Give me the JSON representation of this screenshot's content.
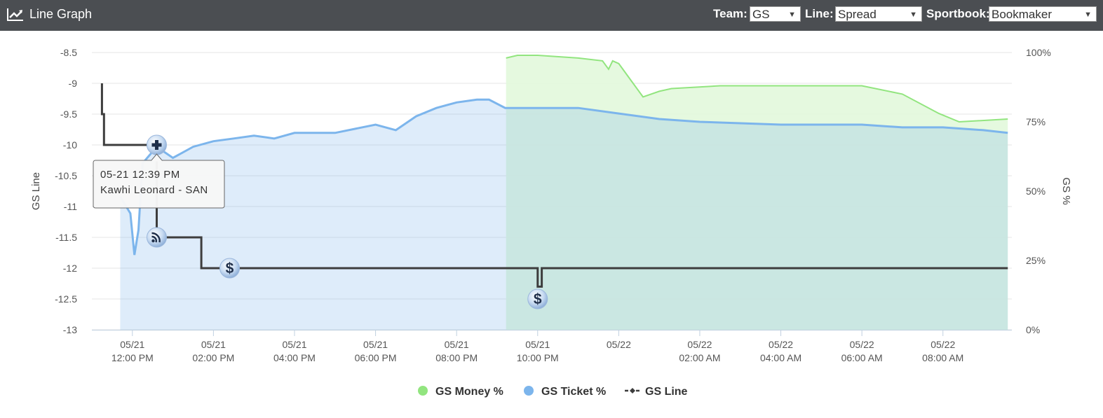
{
  "header": {
    "title": "Line Graph",
    "team_label": "Team:",
    "team_value": "GS",
    "line_label": "Line:",
    "line_value": "Spread",
    "sportsbook_label": "Sportbook:",
    "sportsbook_value": "Bookmaker"
  },
  "colors": {
    "header_bg": "#4b4e52",
    "money": "#92e57f",
    "money_fill": "#e2f8dc",
    "ticket": "#7cb5ec",
    "ticket_fill": "#dde9f7",
    "overlap_fill": "#c9e8e0",
    "line": "#3d3d3d"
  },
  "chart_data": {
    "type": "line",
    "xlabel": "",
    "ylabel": "GS Line",
    "y2label": "GS %",
    "ylim": [
      -13,
      -8.5
    ],
    "y2lim": [
      0,
      100
    ],
    "yticks": [
      "-8.5",
      "-9",
      "-9.5",
      "-10",
      "-10.5",
      "-11",
      "-11.5",
      "-12",
      "-12.5",
      "-13"
    ],
    "y2ticks": [
      "100%",
      "75%",
      "50%",
      "25%",
      "0%"
    ],
    "xticks": [
      {
        "hour": 12,
        "date": "05/21",
        "time": "12:00 PM"
      },
      {
        "hour": 14,
        "date": "05/21",
        "time": "02:00 PM"
      },
      {
        "hour": 16,
        "date": "05/21",
        "time": "04:00 PM"
      },
      {
        "hour": 18,
        "date": "05/21",
        "time": "06:00 PM"
      },
      {
        "hour": 20,
        "date": "05/21",
        "time": "08:00 PM"
      },
      {
        "hour": 22,
        "date": "05/21",
        "time": "10:00 PM"
      },
      {
        "hour": 24,
        "date": "05/22",
        "time": ""
      },
      {
        "hour": 26,
        "date": "05/22",
        "time": "02:00 AM"
      },
      {
        "hour": 28,
        "date": "05/22",
        "time": "04:00 AM"
      },
      {
        "hour": 30,
        "date": "05/22",
        "time": "06:00 AM"
      },
      {
        "hour": 32,
        "date": "05/22",
        "time": "08:00 AM"
      }
    ],
    "xlim": [
      11.0,
      33.7
    ],
    "legend": [
      {
        "name": "GS Money %",
        "marker": "circle",
        "color": "#92e57f"
      },
      {
        "name": "GS Ticket %",
        "marker": "circle",
        "color": "#7cb5ec"
      },
      {
        "name": "GS Line",
        "marker": "line",
        "color": "#3d3d3d"
      }
    ],
    "series": [
      {
        "name": "GS Money %",
        "axis": "right",
        "x": [
          21.22,
          21.5,
          22,
          23,
          23.6,
          23.75,
          23.85,
          24.0,
          24.3,
          24.6,
          25.0,
          25.3,
          26.5,
          28,
          30,
          31,
          31.9,
          32.4,
          33.6
        ],
        "values": [
          98,
          99,
          99,
          98,
          97,
          94,
          97,
          96,
          90,
          84,
          86,
          87,
          88,
          88,
          88,
          85,
          78,
          75,
          76
        ]
      },
      {
        "name": "GS Ticket %",
        "axis": "right",
        "x": [
          11.7,
          11.95,
          12.05,
          12.15,
          12.25,
          12.6,
          13.0,
          13.5,
          14.0,
          14.5,
          15.0,
          15.5,
          16.0,
          17.0,
          18.0,
          18.5,
          19.0,
          19.5,
          20.0,
          20.5,
          20.8,
          21.2,
          22.0,
          23.0,
          24.0,
          25.0,
          26.0,
          28.0,
          30.0,
          31.0,
          32.0,
          33.0,
          33.6
        ],
        "values": [
          48,
          42,
          27,
          36,
          60,
          66,
          62,
          66,
          68,
          69,
          70,
          69,
          71,
          71,
          74,
          72,
          77,
          80,
          82,
          83,
          83,
          80,
          80,
          80,
          78,
          76,
          75,
          74,
          74,
          73,
          73,
          72,
          71
        ]
      },
      {
        "name": "GS Line",
        "axis": "left",
        "x": [
          11.25,
          11.25,
          11.3,
          11.3,
          12.6,
          12.6,
          13.7,
          13.7,
          22.0,
          22.0,
          22.1,
          22.1,
          33.6
        ],
        "values": [
          -9.0,
          -9.5,
          -9.5,
          -10.0,
          -10.0,
          -11.5,
          -11.5,
          -12.0,
          -12.0,
          -12.3,
          -12.3,
          -12.0,
          -12.0
        ]
      }
    ],
    "event_markers": [
      {
        "x": 12.6,
        "y": -10.0,
        "icon": "plus"
      },
      {
        "x": 12.6,
        "y": -11.5,
        "icon": "rss"
      },
      {
        "x": 14.4,
        "y": -12.0,
        "icon": "dollar"
      },
      {
        "x": 22.0,
        "y": -12.5,
        "icon": "dollar"
      }
    ],
    "tooltip": {
      "line1": "05-21 12:39 PM",
      "line2": "Kawhi Leonard - SAN"
    }
  }
}
